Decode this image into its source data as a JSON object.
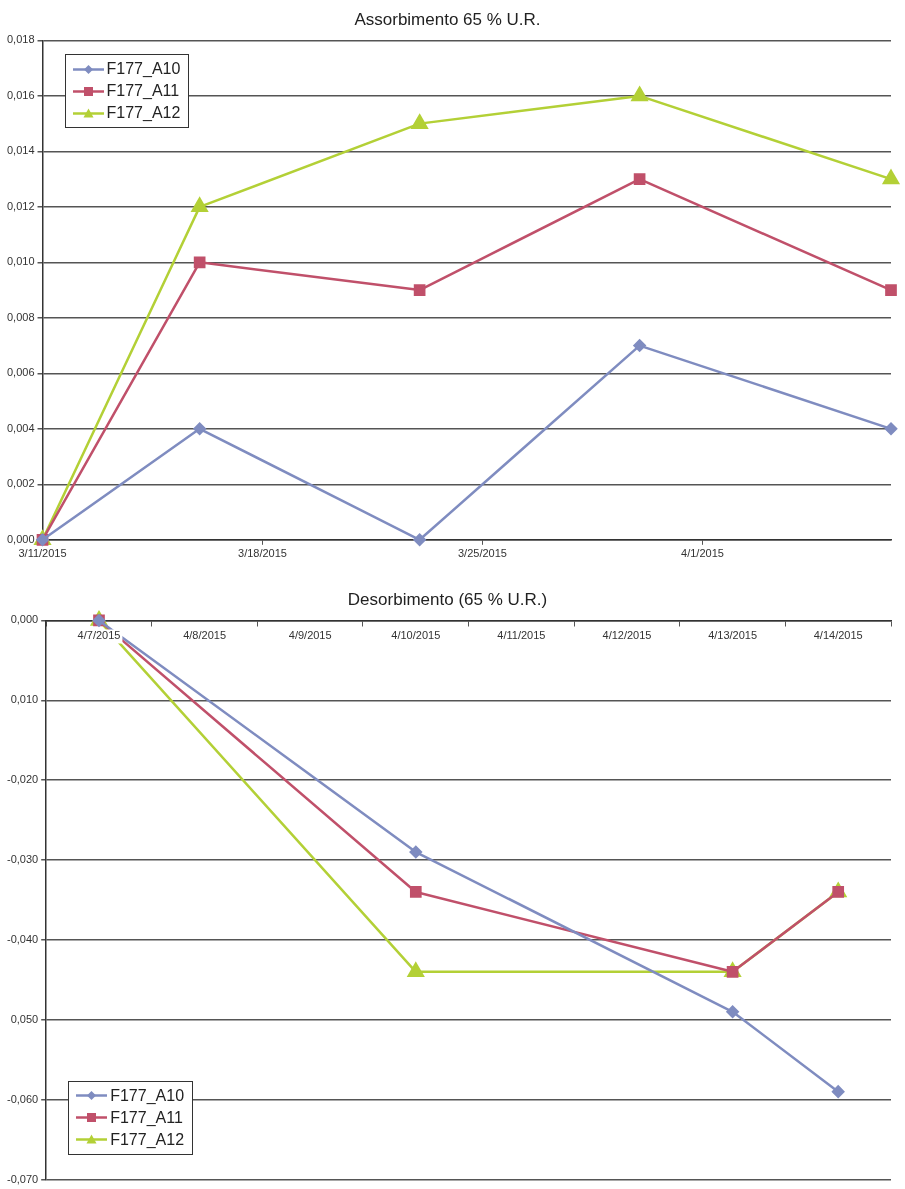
{
  "chart_data": [
    {
      "type": "line",
      "title": "Assorbimento 65 % U.R.",
      "x": [
        "2015-03-11",
        "2015-03-16",
        "2015-03-23",
        "2015-03-30",
        "2015-04-07"
      ],
      "series": [
        {
          "name": "F177_A10",
          "color": "#7f8cc0",
          "marker": "diamond",
          "values": [
            0,
            0.004,
            0,
            0.007,
            0.004
          ]
        },
        {
          "name": "F177_A11",
          "color": "#c0506a",
          "marker": "square",
          "values": [
            0,
            0.01,
            0.009,
            0.013,
            0.009
          ]
        },
        {
          "name": "F177_A12",
          "color": "#b3d036",
          "marker": "triangle",
          "values": [
            0,
            0.012,
            0.015,
            0.016,
            0.013
          ]
        }
      ],
      "xlim": [
        "2015-03-11",
        "2015-04-07"
      ],
      "xticks": [
        {
          "value": "2015-03-11",
          "label": "3/11/2015"
        },
        {
          "value": "2015-03-18",
          "label": "3/18/2015"
        },
        {
          "value": "2015-03-25",
          "label": "3/25/2015"
        },
        {
          "value": "2015-04-01",
          "label": "4/1/2015"
        }
      ],
      "ylim": [
        0,
        0.018
      ],
      "yticks": [
        {
          "value": 0,
          "label": "0,000"
        },
        {
          "value": 0.002,
          "label": "0,002"
        },
        {
          "value": 0.004,
          "label": "0,004"
        },
        {
          "value": 0.006,
          "label": "0,006"
        },
        {
          "value": 0.008,
          "label": "0,008"
        },
        {
          "value": 0.01,
          "label": "0,010"
        },
        {
          "value": 0.012,
          "label": "0,012"
        },
        {
          "value": 0.014,
          "label": "0,014"
        },
        {
          "value": 0.016,
          "label": "0,016"
        },
        {
          "value": 0.018,
          "label": "0,018"
        }
      ],
      "grid": "y",
      "legend": "top left"
    },
    {
      "type": "line",
      "title": "Desorbimento (65 % U.R.)",
      "categories": [
        "4/7/2015",
        "4/8/2015",
        "4/9/2015",
        "4/10/2015",
        "4/11/2015",
        "4/12/2015",
        "4/13/2015",
        "4/14/2015"
      ],
      "series": [
        {
          "name": "F177_A10",
          "color": "#7f8cc0",
          "marker": "diamond",
          "values": [
            0,
            null,
            null,
            -0.029,
            null,
            null,
            -0.049,
            -0.059
          ]
        },
        {
          "name": "F177_A11",
          "color": "#c0506a",
          "marker": "square",
          "values": [
            0,
            null,
            null,
            -0.034,
            null,
            null,
            -0.044,
            -0.034
          ]
        },
        {
          "name": "F177_A12",
          "color": "#b3d036",
          "marker": "triangle",
          "values": [
            0,
            null,
            null,
            -0.044,
            null,
            null,
            -0.044,
            -0.034
          ]
        }
      ],
      "ylim": [
        -0.07,
        0
      ],
      "yticks": [
        {
          "value": 0,
          "label": "0,000"
        },
        {
          "value": -0.01,
          "label": "0,010"
        },
        {
          "value": -0.02,
          "label": "-0,020"
        },
        {
          "value": -0.03,
          "label": "-0,030"
        },
        {
          "value": -0.04,
          "label": "-0,040"
        },
        {
          "value": -0.05,
          "label": "0,050"
        },
        {
          "value": -0.06,
          "label": "-0,060"
        },
        {
          "value": -0.07,
          "label": "-0,070"
        }
      ],
      "grid": "y",
      "legend": "bottom left"
    }
  ]
}
